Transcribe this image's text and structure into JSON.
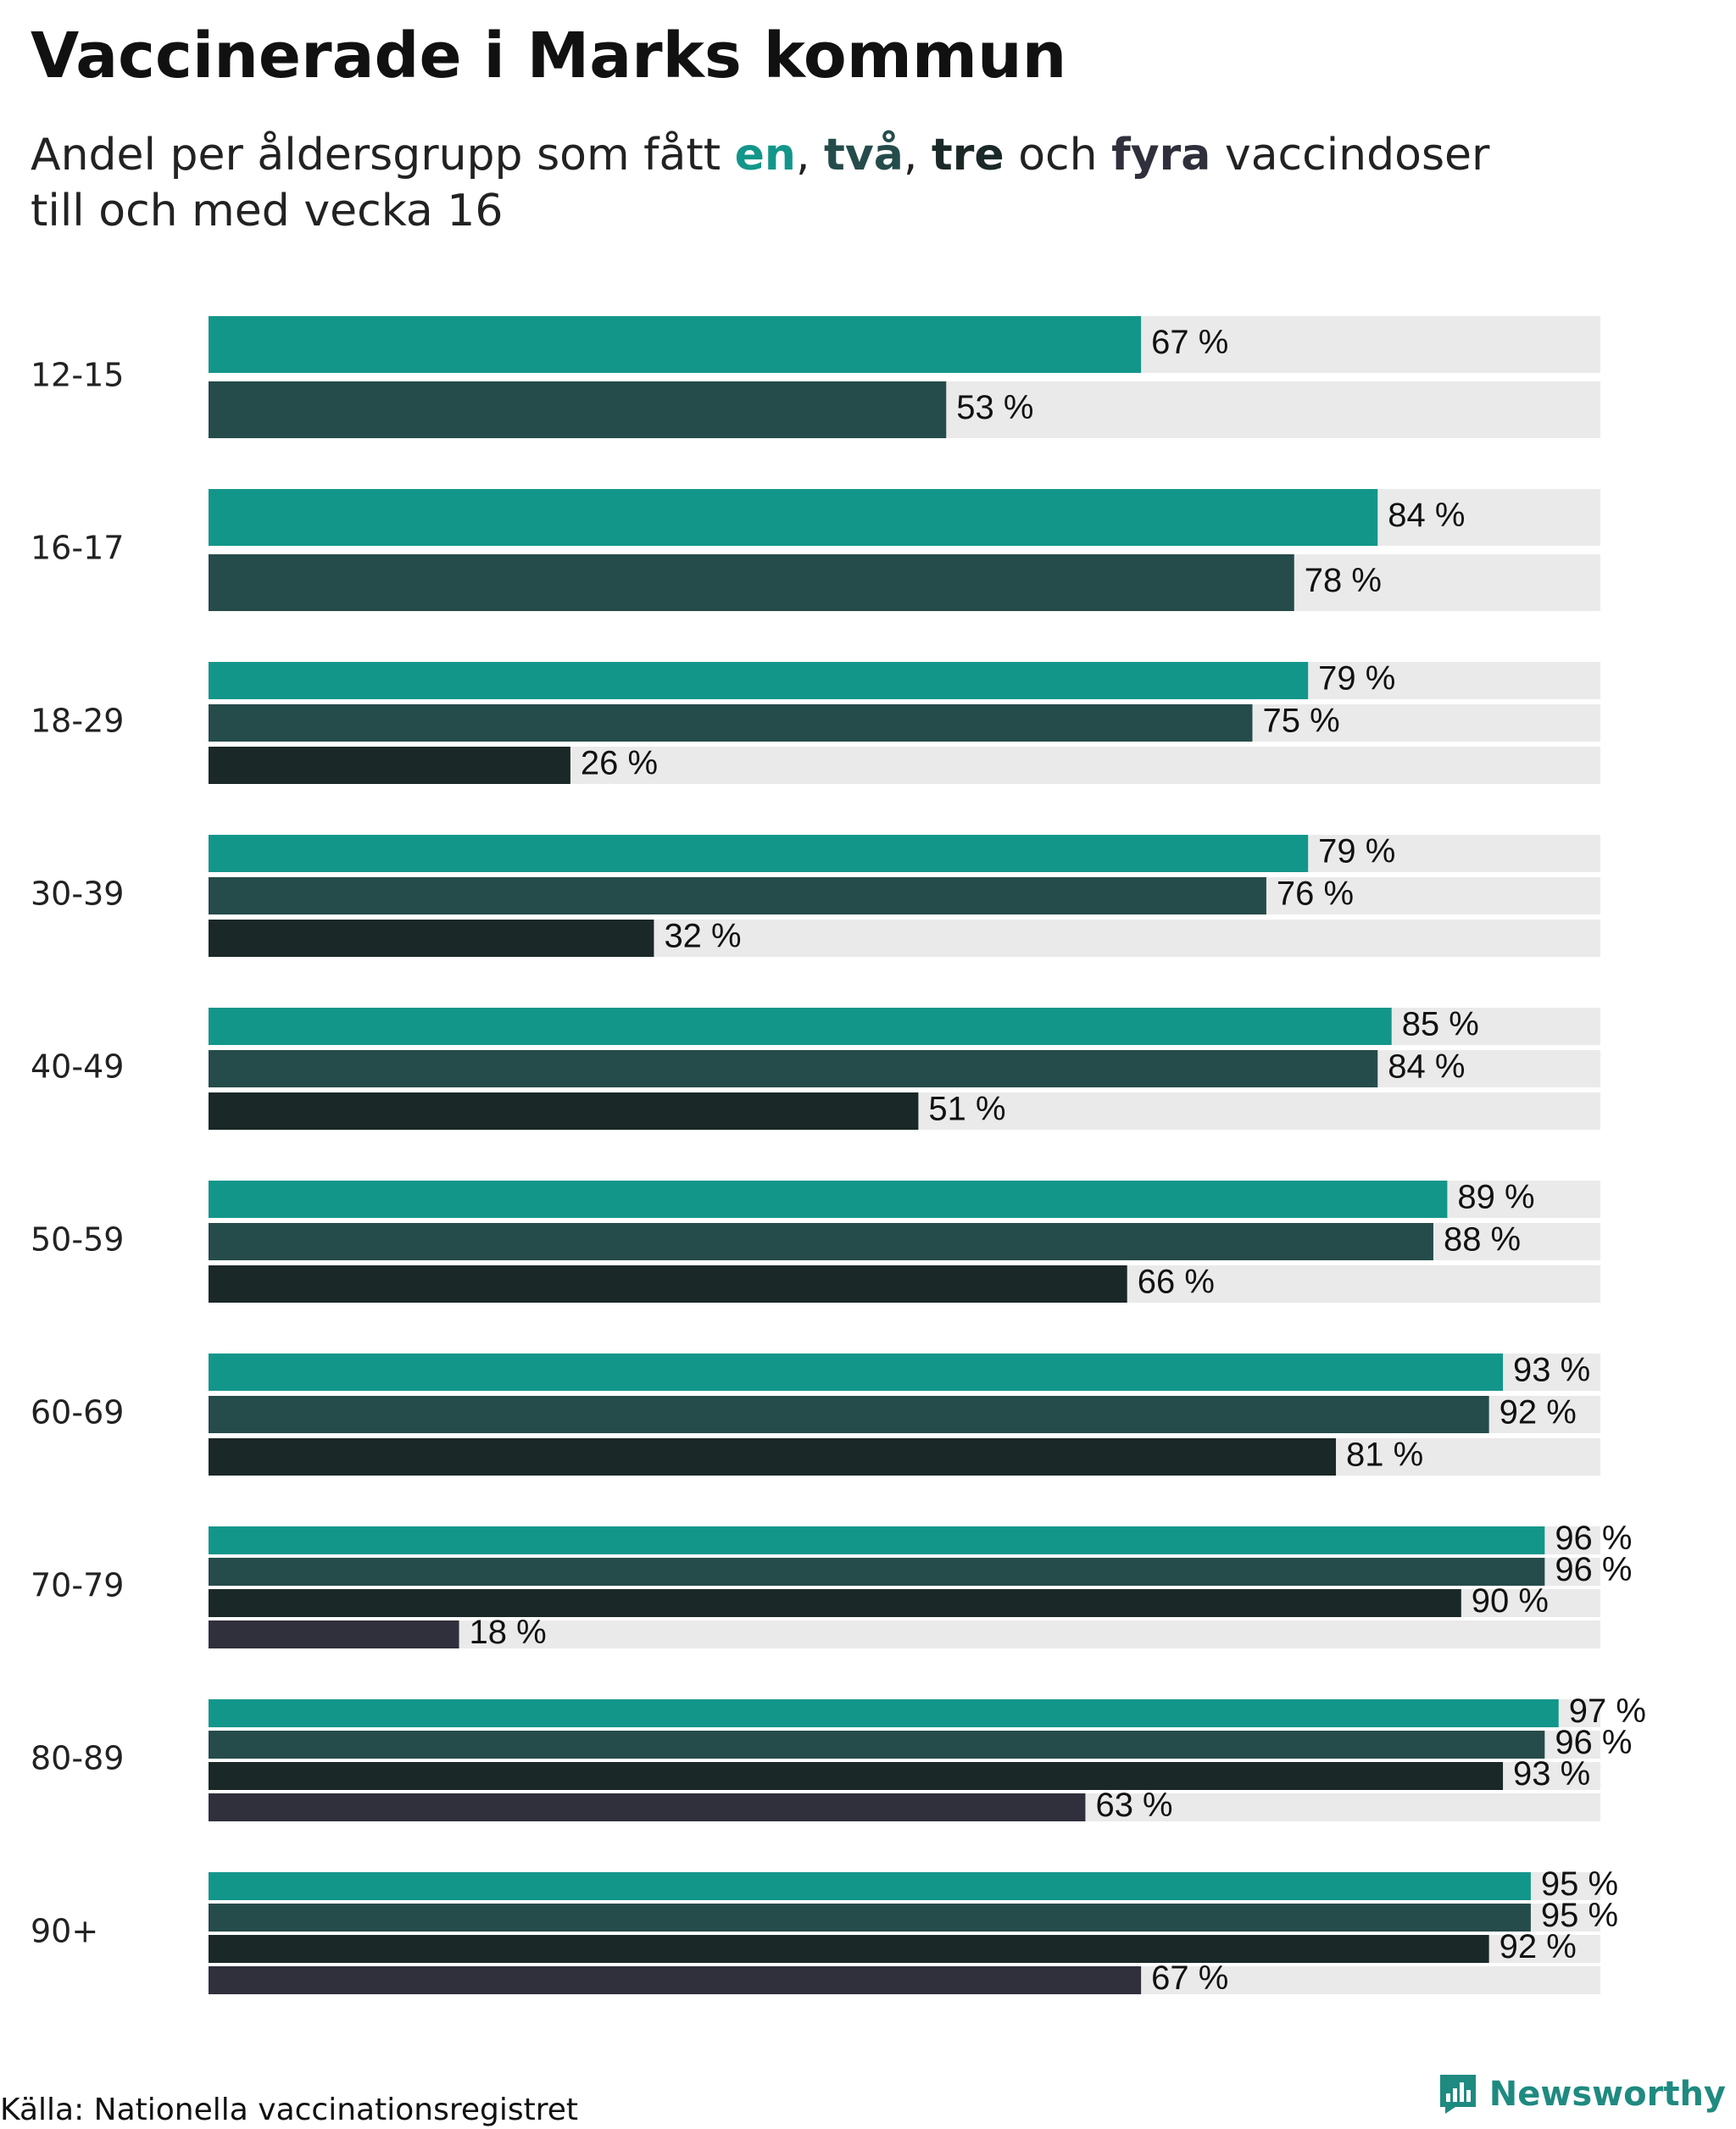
{
  "header": {
    "title": "Vaccinerade i Marks kommun",
    "subtitle_part1": "Andel per åldersgrupp som fått ",
    "dose_one": "en",
    "sep1": ", ",
    "dose_two": "två",
    "sep2": ", ",
    "dose_three": "tre",
    "sep3": " och ",
    "dose_four": "fyra",
    "subtitle_part2": " vaccindoser",
    "subtitle_line2": "till och med vecka 16"
  },
  "footer": {
    "source": "Källa: Nationella vaccinationsregistret",
    "brand": "Newsworthy"
  },
  "colors": {
    "one_dose": "#13968A",
    "two_doses": "#254C4A",
    "three_doses": "#1A2827",
    "four_doses": "#30303C",
    "track": "#EAEAEA",
    "brand": "#1F8A80"
  },
  "chart_data": {
    "type": "bar",
    "orientation": "horizontal",
    "title": "Vaccinerade i Marks kommun",
    "subtitle": "Andel per åldersgrupp som fått en, två, tre och fyra vaccindoser till och med vecka 16",
    "xlabel": "",
    "ylabel": "",
    "xlim": [
      0,
      100
    ],
    "unit": " %",
    "categories": [
      "12-15",
      "16-17",
      "18-29",
      "30-39",
      "40-49",
      "50-59",
      "60-69",
      "70-79",
      "80-89",
      "90+"
    ],
    "series": [
      {
        "name": "en",
        "values": [
          67,
          84,
          79,
          79,
          85,
          89,
          93,
          96,
          97,
          95
        ]
      },
      {
        "name": "två",
        "values": [
          53,
          78,
          75,
          76,
          84,
          88,
          92,
          96,
          96,
          95
        ]
      },
      {
        "name": "tre",
        "values": [
          null,
          null,
          26,
          32,
          51,
          66,
          81,
          90,
          93,
          92
        ]
      },
      {
        "name": "fyra",
        "values": [
          null,
          null,
          null,
          null,
          null,
          null,
          null,
          18,
          63,
          67
        ]
      }
    ],
    "grid": false,
    "legend": "inline in subtitle"
  }
}
